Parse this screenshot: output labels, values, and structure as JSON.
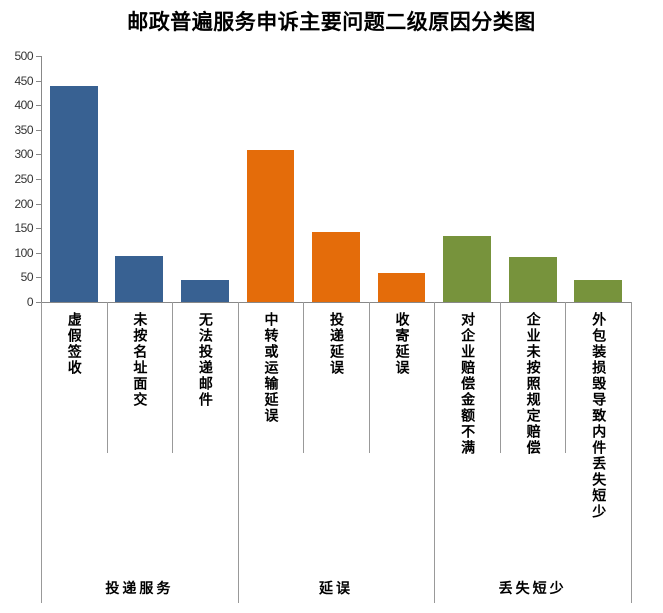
{
  "chart_data": {
    "type": "bar",
    "title": "邮政普遍服务申诉主要问题二级原因分类图",
    "xlabel": "",
    "ylabel": "",
    "ylim": [
      0,
      500
    ],
    "yticks": [
      "0",
      "50",
      "100",
      "150",
      "200",
      "250",
      "300",
      "350",
      "400",
      "450",
      "500"
    ],
    "grid": false,
    "legend": null,
    "groups": [
      {
        "name": "投递服务",
        "color": "#386192",
        "categories": [
          "虚假签收",
          "未按名址面交",
          "无法投递邮件"
        ],
        "values": [
          439,
          93,
          45
        ]
      },
      {
        "name": "延误",
        "color": "#e46c0a",
        "categories": [
          "中转或运输延误",
          "投递延误",
          "收寄延误"
        ],
        "values": [
          309,
          142,
          59
        ]
      },
      {
        "name": "丢失短少",
        "color": "#77933c",
        "categories": [
          "对企业赔偿金额不满",
          "企业未按照规定赔偿",
          "外包装损毁导致内件丢失短少"
        ],
        "values": [
          134,
          91,
          45
        ]
      }
    ]
  }
}
